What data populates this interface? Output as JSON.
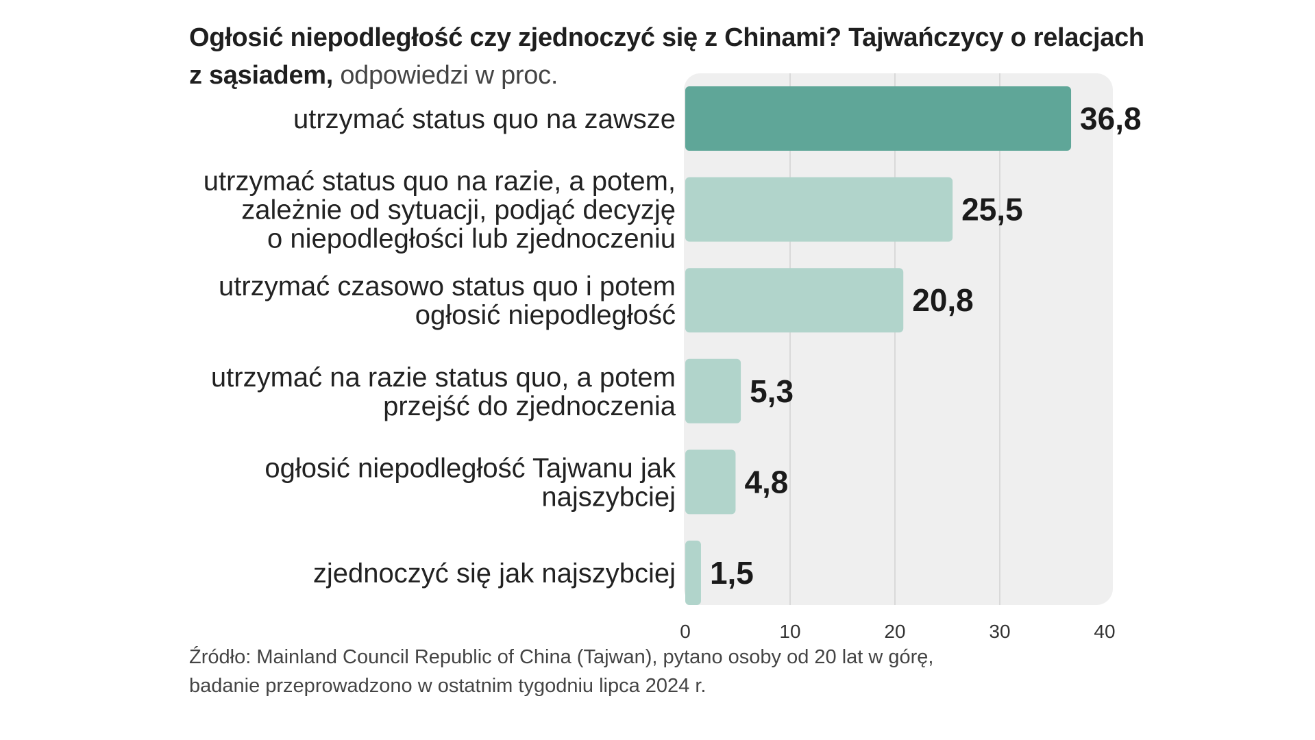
{
  "chart_data": {
    "type": "bar",
    "orientation": "horizontal",
    "title_bold": "Ogłosić niepodległość czy zjednoczyć się z Chinami? Tajwańczycy o relacjach z sąsiadem,",
    "title_light": "odpowiedzi w proc.",
    "categories": [
      [
        "utrzymać status quo na zawsze"
      ],
      [
        "utrzymać status quo na razie, a potem,",
        "zależnie od sytuacji, podjąć decyzję",
        "o niepodległości lub zjednoczeniu"
      ],
      [
        "utrzymać czasowo status quo i potem",
        "ogłosić niepodległość"
      ],
      [
        "utrzymać na razie status quo, a potem",
        "przejść do zjednoczenia"
      ],
      [
        "ogłosić niepodległość Tajwanu jak",
        "najszybciej"
      ],
      [
        "zjednoczyć się jak najszybciej"
      ]
    ],
    "values": [
      36.8,
      25.5,
      20.8,
      5.3,
      4.8,
      1.5
    ],
    "value_labels": [
      "36,8",
      "25,5",
      "20,8",
      "5,3",
      "4,8",
      "1,5"
    ],
    "xlim": [
      0,
      40
    ],
    "xticks": [
      0,
      10,
      20,
      30,
      40
    ],
    "xtick_labels": [
      "0",
      "10",
      "20",
      "30",
      "40"
    ],
    "grid": true,
    "colors": {
      "highlight_bar": "#5fa698",
      "bar": "#b1d4cb",
      "plot_background": "#efefef",
      "gridline": "#d9d9d9"
    }
  },
  "source": {
    "line1": "Źródło: Mainland Council Republic of China (Tajwan), pytano osoby od 20 lat w górę,",
    "line2": "badanie przeprowadzono w ostatnim tygodniu lipca 2024 r."
  }
}
